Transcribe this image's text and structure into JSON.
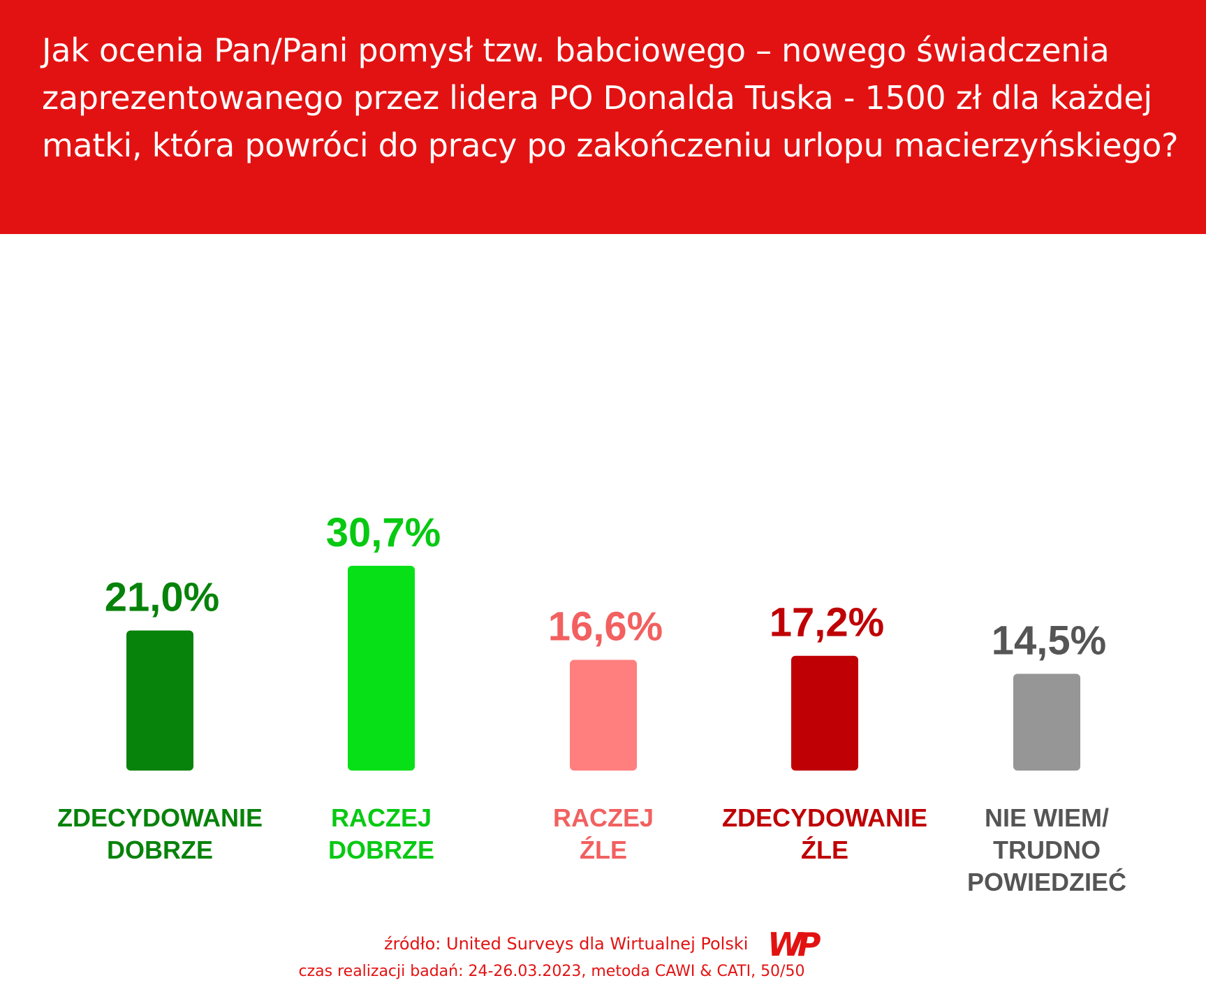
{
  "title": "Jak ocenia Pan/Pani pomysł tzw. babciowego – nowego świadczenia zaprezentowanego przez lidera PO Donalda Tuska - 1500 zł dla każdej matki, która powróci do pracy po zakończeniu urlopu macierzyńskiego?",
  "colors": {
    "header": "#e31212",
    "bars": [
      "#07820a",
      "#07e016",
      "#ff7f7f",
      "#bf0004",
      "#969696"
    ],
    "value_labels": [
      "#07820a",
      "#07c912",
      "#f26060",
      "#bf0004",
      "#555555"
    ],
    "category_labels": [
      "#07820a",
      "#07c912",
      "#f26060",
      "#bf0004",
      "#555555"
    ]
  },
  "chart_data": {
    "type": "bar",
    "title": "Jak ocenia Pan/Pani pomysł tzw. babciowego – nowego świadczenia zaprezentowanego przez lidera PO Donalda Tuska - 1500 zł dla każdej matki, która powróci do pracy po zakończeniu urlopu macierzyńskiego?",
    "xlabel": "",
    "ylabel": "",
    "ylim": [
      0,
      31
    ],
    "grid": false,
    "categories": [
      [
        "ZDECYDOWANIE",
        "DOBRZE"
      ],
      [
        "RACZEJ",
        "DOBRZE"
      ],
      [
        "RACZEJ",
        "ŹLE"
      ],
      [
        "ZDECYDOWANIE",
        "ŹLE"
      ],
      [
        "NIE WIEM/",
        "TRUDNO",
        "POWIEDZIEĆ"
      ]
    ],
    "values": [
      21.0,
      30.7,
      16.6,
      17.2,
      14.5
    ],
    "value_labels": [
      "21,0%",
      "30,7%",
      "16,6%",
      "17,2%",
      "14,5%"
    ]
  },
  "footer": {
    "source": "źródło: United Surveys dla Wirtualnej Polski",
    "method": "czas realizacji badań: 24-26.03.2023, metoda CAWI & CATI, 50/50",
    "logo_text": "WP"
  }
}
